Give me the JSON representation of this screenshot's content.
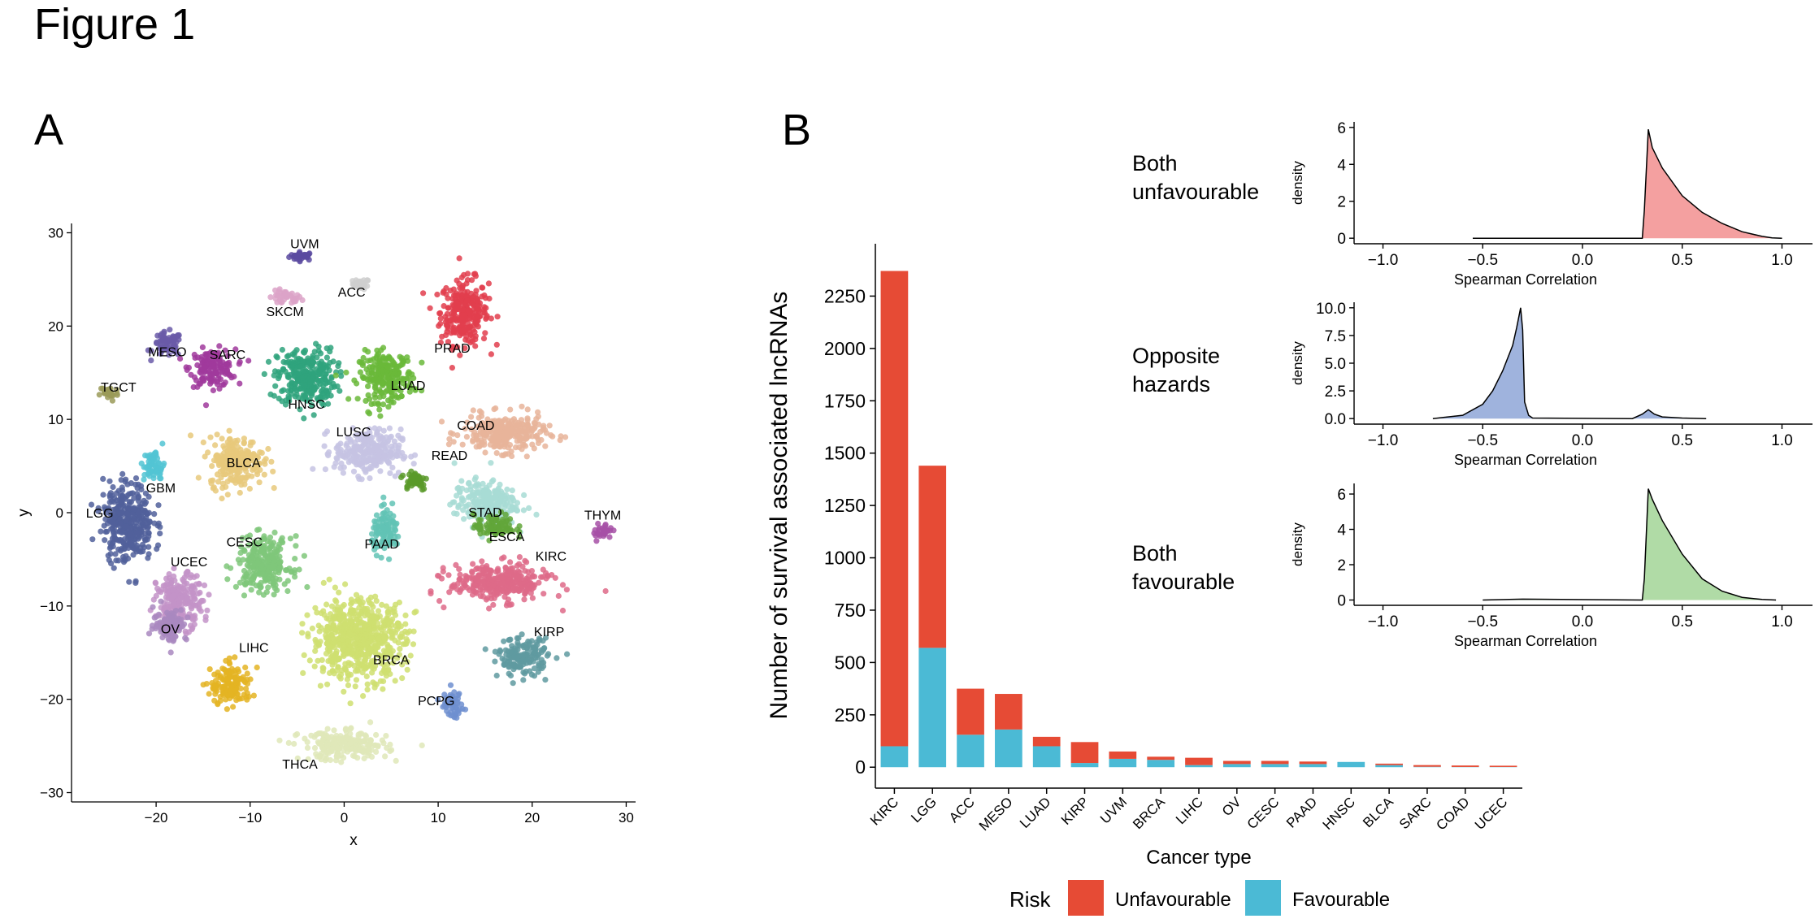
{
  "figure_title": "Figure 1",
  "panel_a_label": "A",
  "panel_b_label": "B",
  "chart_data": [
    {
      "type": "scatter",
      "panel": "A",
      "xlabel": "x",
      "ylabel": "y",
      "xlim": [
        -29,
        31
      ],
      "ylim": [
        -31,
        31
      ],
      "xticks": [
        -20,
        -10,
        0,
        10,
        20,
        30
      ],
      "yticks": [
        -30,
        -20,
        -10,
        0,
        10,
        20,
        30
      ],
      "grid": false,
      "clusters": [
        {
          "name": "UVM",
          "x": -4.5,
          "y": 27.5,
          "sx": 1.2,
          "sy": 0.4,
          "color": "#5a4aa0",
          "label_x": -4.2,
          "label_y": 28.8
        },
        {
          "name": "ACC",
          "x": 1.8,
          "y": 24.5,
          "sx": 0.8,
          "sy": 0.5,
          "color": "#cfcfcf",
          "label_x": 0.8,
          "label_y": 23.6
        },
        {
          "name": "SKCM",
          "x": -6.3,
          "y": 23.0,
          "sx": 1.6,
          "sy": 0.7,
          "color": "#dca3c8",
          "label_x": -6.3,
          "label_y": 21.5
        },
        {
          "name": "PRAD",
          "x": 12.8,
          "y": 21.5,
          "sx": 2.3,
          "sy": 3.2,
          "color": "#e23e4e",
          "label_x": 11.5,
          "label_y": 17.6
        },
        {
          "name": "MESO",
          "x": -18.8,
          "y": 18.0,
          "sx": 1.4,
          "sy": 1.2,
          "color": "#6a5ba8",
          "label_x": -18.8,
          "label_y": 17.2
        },
        {
          "name": "SARC",
          "x": -14.0,
          "y": 15.5,
          "sx": 2.2,
          "sy": 1.8,
          "color": "#a0399c",
          "label_x": -12.4,
          "label_y": 16.9
        },
        {
          "name": "TGCT",
          "x": -25.0,
          "y": 12.8,
          "sx": 0.9,
          "sy": 0.8,
          "color": "#9a9a58",
          "label_x": -24.0,
          "label_y": 13.4
        },
        {
          "name": "HNSC",
          "x": -4.0,
          "y": 14.5,
          "sx": 2.8,
          "sy": 2.8,
          "color": "#2fa37c",
          "label_x": -4.0,
          "label_y": 11.6
        },
        {
          "name": "LUAD",
          "x": 4.5,
          "y": 14.5,
          "sx": 2.6,
          "sy": 2.4,
          "color": "#6ab83a",
          "label_x": 6.8,
          "label_y": 13.6
        },
        {
          "name": "COAD",
          "x": 17.0,
          "y": 8.5,
          "sx": 4.0,
          "sy": 1.8,
          "color": "#e8b49a",
          "label_x": 14.0,
          "label_y": 9.3
        },
        {
          "name": "LUSC",
          "x": 2.5,
          "y": 6.5,
          "sx": 3.2,
          "sy": 2.2,
          "color": "#c5c3e3",
          "label_x": 1.0,
          "label_y": 8.6
        },
        {
          "name": "READ",
          "x": 7.5,
          "y": 3.5,
          "sx": 1.3,
          "sy": 1.0,
          "color": "#5b9a2a",
          "label_x": 11.2,
          "label_y": 6.1
        },
        {
          "name": "BLCA",
          "x": -11.5,
          "y": 5.5,
          "sx": 2.6,
          "sy": 2.4,
          "color": "#e8c97b",
          "label_x": -10.7,
          "label_y": 5.3
        },
        {
          "name": "GBM",
          "x": -20.2,
          "y": 5.0,
          "sx": 1.0,
          "sy": 1.6,
          "color": "#52c4d4",
          "label_x": -19.5,
          "label_y": 2.6
        },
        {
          "name": "STAD",
          "x": 15.0,
          "y": 1.0,
          "sx": 3.0,
          "sy": 2.2,
          "color": "#a8dcd5",
          "label_x": 15.0,
          "label_y": 0.0
        },
        {
          "name": "ESCA",
          "x": 16.0,
          "y": -1.5,
          "sx": 2.0,
          "sy": 1.2,
          "color": "#62a63a",
          "label_x": 17.3,
          "label_y": -2.6
        },
        {
          "name": "LGG",
          "x": -23.0,
          "y": -1.0,
          "sx": 2.4,
          "sy": 3.8,
          "color": "#51609b",
          "label_x": -26.0,
          "label_y": -0.1
        },
        {
          "name": "THYM",
          "x": 27.5,
          "y": -2.0,
          "sx": 0.9,
          "sy": 0.8,
          "color": "#a650a6",
          "label_x": 27.5,
          "label_y": -0.3
        },
        {
          "name": "PAAD",
          "x": 4.5,
          "y": -2.0,
          "sx": 1.4,
          "sy": 2.0,
          "color": "#61c3b5",
          "label_x": 4.0,
          "label_y": -3.4
        },
        {
          "name": "CESC",
          "x": -8.5,
          "y": -5.5,
          "sx": 2.6,
          "sy": 2.6,
          "color": "#7fc77a",
          "label_x": -10.6,
          "label_y": -3.2
        },
        {
          "name": "KIRC",
          "x": 16.5,
          "y": -7.5,
          "sx": 4.8,
          "sy": 1.8,
          "color": "#de6a88",
          "label_x": 22.0,
          "label_y": -4.7
        },
        {
          "name": "UCEC",
          "x": -17.5,
          "y": -9.5,
          "sx": 2.2,
          "sy": 2.6,
          "color": "#c393c8",
          "label_x": -16.5,
          "label_y": -5.3
        },
        {
          "name": "BRCA",
          "x": 1.5,
          "y": -13.5,
          "sx": 4.5,
          "sy": 3.8,
          "color": "#cfdf70",
          "label_x": 5.0,
          "label_y": -15.8
        },
        {
          "name": "OV",
          "x": -18.5,
          "y": -12.0,
          "sx": 1.6,
          "sy": 1.6,
          "color": "#a988c0",
          "label_x": -18.5,
          "label_y": -12.5
        },
        {
          "name": "LIHC",
          "x": -12.0,
          "y": -18.5,
          "sx": 2.0,
          "sy": 2.0,
          "color": "#e4b423",
          "label_x": -9.6,
          "label_y": -14.5
        },
        {
          "name": "KIRP",
          "x": 19.0,
          "y": -15.5,
          "sx": 2.4,
          "sy": 1.8,
          "color": "#5f9aa0",
          "label_x": 21.8,
          "label_y": -12.8
        },
        {
          "name": "PCPG",
          "x": 11.5,
          "y": -20.5,
          "sx": 1.1,
          "sy": 1.3,
          "color": "#6f8fd0",
          "label_x": 9.8,
          "label_y": -20.2
        },
        {
          "name": "THCA",
          "x": 0.0,
          "y": -25.0,
          "sx": 4.2,
          "sy": 1.4,
          "color": "#dfe8b8",
          "label_x": -4.7,
          "label_y": -27.0
        }
      ]
    },
    {
      "type": "bar",
      "panel": "B",
      "stacked": true,
      "xlabel": "Cancer type",
      "ylabel": "Number of survival associated lncRNAs",
      "ylim": [
        -100,
        2500
      ],
      "yticks": [
        0,
        250,
        500,
        750,
        1000,
        1250,
        1500,
        1750,
        2000,
        2250
      ],
      "grid": false,
      "categories": [
        "KIRC",
        "LGG",
        "ACC",
        "MESO",
        "LUAD",
        "KIRP",
        "UVM",
        "BRCA",
        "LIHC",
        "OV",
        "CESC",
        "PAAD",
        "HNSC",
        "BLCA",
        "SARC",
        "COAD",
        "UCEC"
      ],
      "series": [
        {
          "name": "Favourable",
          "color": "#4bbad5",
          "values": [
            100,
            570,
            155,
            180,
            100,
            20,
            40,
            35,
            10,
            15,
            15,
            15,
            25,
            10,
            2,
            1,
            1
          ]
        },
        {
          "name": "Unfavourable",
          "color": "#e64b35",
          "values": [
            2270,
            870,
            220,
            170,
            45,
            100,
            35,
            15,
            35,
            15,
            15,
            12,
            0,
            7,
            8,
            7,
            6
          ]
        }
      ],
      "legend": {
        "title": "Risk",
        "position": "bottom",
        "items": [
          "Unfavourable",
          "Favourable"
        ]
      }
    },
    {
      "type": "area",
      "panel": "B-inset",
      "title": "Both unfavourable",
      "title_lines": [
        "Both",
        "unfavourable"
      ],
      "xlabel": "Spearman Correlation",
      "ylabel": "density",
      "xlim": [
        -1.1,
        1.1
      ],
      "xticks": [
        -1.0,
        -0.5,
        0.0,
        0.5,
        1.0
      ],
      "ylim": [
        -0.3,
        6.3
      ],
      "yticks": [
        0,
        2,
        4,
        6
      ],
      "fill": "#f4a0a0",
      "x": [
        -0.55,
        -0.3,
        0.3,
        0.31,
        0.33,
        0.35,
        0.4,
        0.5,
        0.6,
        0.7,
        0.8,
        0.9,
        0.95,
        1.0
      ],
      "y": [
        0.0,
        0.0,
        0.0,
        1.5,
        5.9,
        4.9,
        3.8,
        2.3,
        1.4,
        0.8,
        0.35,
        0.1,
        0.02,
        0.0
      ]
    },
    {
      "type": "area",
      "panel": "B-inset",
      "title": "Opposite hazards",
      "title_lines": [
        "Opposite",
        "hazards"
      ],
      "xlabel": "Spearman Correlation",
      "ylabel": "density",
      "xlim": [
        -1.1,
        1.1
      ],
      "xticks": [
        -1.0,
        -0.5,
        0.0,
        0.5,
        1.0
      ],
      "ylim": [
        -0.5,
        10.5
      ],
      "yticks": [
        0.0,
        2.5,
        5.0,
        7.5,
        10.0
      ],
      "fill": "#9fb3dd",
      "x": [
        -0.75,
        -0.6,
        -0.5,
        -0.45,
        -0.4,
        -0.35,
        -0.33,
        -0.31,
        -0.3,
        -0.29,
        -0.27,
        -0.25,
        0.25,
        0.3,
        0.33,
        0.36,
        0.4,
        0.5,
        0.62
      ],
      "y": [
        0.0,
        0.3,
        1.3,
        2.5,
        4.3,
        6.6,
        8.2,
        10.0,
        8.0,
        1.5,
        0.3,
        0.05,
        0.0,
        0.4,
        0.8,
        0.4,
        0.15,
        0.05,
        0.0
      ]
    },
    {
      "type": "area",
      "panel": "B-inset",
      "title": "Both favourable",
      "title_lines": [
        "Both",
        "favourable"
      ],
      "xlabel": "Spearman Correlation",
      "ylabel": "density",
      "xlim": [
        -1.1,
        1.1
      ],
      "xticks": [
        -1.0,
        -0.5,
        0.0,
        0.5,
        1.0
      ],
      "ylim": [
        -0.3,
        6.6
      ],
      "yticks": [
        0,
        2,
        4,
        6
      ],
      "fill": "#b0dba6",
      "x": [
        -0.5,
        -0.3,
        0.3,
        0.31,
        0.33,
        0.35,
        0.4,
        0.5,
        0.6,
        0.7,
        0.8,
        0.9,
        0.97
      ],
      "y": [
        0.0,
        0.05,
        0.0,
        1.2,
        6.3,
        5.7,
        4.5,
        2.6,
        1.2,
        0.5,
        0.15,
        0.03,
        0.0
      ]
    }
  ]
}
